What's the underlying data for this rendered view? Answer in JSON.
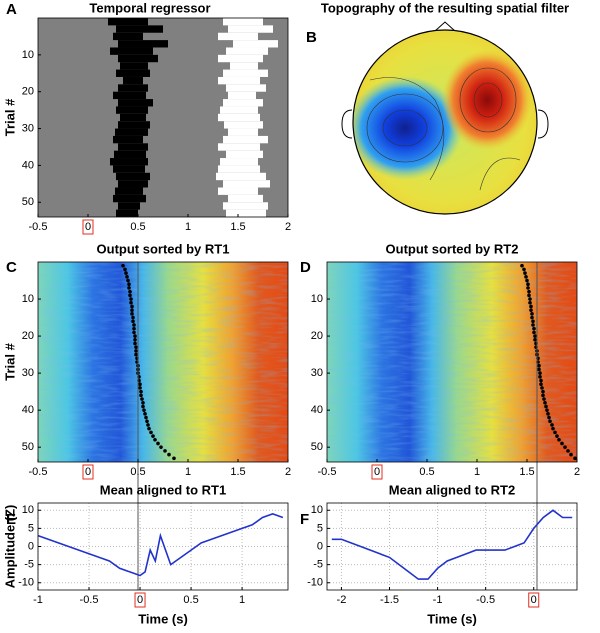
{
  "chart_data": [
    {
      "type": "raster",
      "panel": "A",
      "title": "Temporal regressor",
      "ylabel": "Trial #",
      "xlim": [
        -0.5,
        2
      ],
      "xticks": [
        -0.5,
        0,
        0.5,
        1,
        1.5,
        2
      ],
      "highlight_tick": 0,
      "ylim": [
        0,
        54
      ],
      "yticks": [
        10,
        20,
        30,
        40,
        50
      ],
      "yinvert": true,
      "trials": [
        1,
        3,
        5,
        7,
        9,
        11,
        13,
        15,
        17,
        19,
        21,
        23,
        25,
        27,
        29,
        31,
        33,
        35,
        37,
        39,
        41,
        43,
        45,
        47,
        49,
        51,
        53
      ],
      "black_start": [
        0.2,
        0.28,
        0.25,
        0.3,
        0.22,
        0.3,
        0.32,
        0.28,
        0.35,
        0.3,
        0.25,
        0.3,
        0.28,
        0.32,
        0.3,
        0.27,
        0.25,
        0.3,
        0.26,
        0.22,
        0.25,
        0.28,
        0.3,
        0.27,
        0.25,
        0.3,
        0.28
      ],
      "black_end": [
        0.6,
        0.75,
        0.55,
        0.8,
        0.65,
        0.7,
        0.6,
        0.62,
        0.55,
        0.6,
        0.58,
        0.65,
        0.6,
        0.58,
        0.62,
        0.6,
        0.55,
        0.6,
        0.58,
        0.6,
        0.57,
        0.62,
        0.6,
        0.55,
        0.58,
        0.52,
        0.5
      ],
      "white_start": [
        1.35,
        1.4,
        1.3,
        1.45,
        1.38,
        1.3,
        1.42,
        1.35,
        1.3,
        1.38,
        1.4,
        1.35,
        1.32,
        1.3,
        1.36,
        1.4,
        1.35,
        1.3,
        1.38,
        1.32,
        1.3,
        1.28,
        1.35,
        1.3,
        1.4,
        1.35,
        1.38
      ],
      "white_end": [
        1.75,
        1.85,
        1.7,
        1.9,
        1.8,
        1.75,
        1.7,
        1.8,
        1.72,
        1.78,
        1.68,
        1.75,
        1.7,
        1.72,
        1.75,
        1.7,
        1.8,
        1.72,
        1.75,
        1.7,
        1.72,
        1.78,
        1.82,
        1.7,
        1.75,
        1.8,
        1.78
      ]
    },
    {
      "type": "topomap",
      "panel": "B",
      "title": "Topography of the resulting spatial filter"
    },
    {
      "type": "heatmap",
      "panel": "C",
      "title": "Output sorted by RT1",
      "ylabel": "Trial #",
      "xlim": [
        -0.5,
        2
      ],
      "xticks": [
        -0.5,
        0,
        0.5,
        1,
        1.5,
        2
      ],
      "highlight_tick": 0,
      "reference_line": 0.5,
      "ylim": [
        0,
        54
      ],
      "yticks": [
        10,
        20,
        30,
        40,
        50
      ],
      "yinvert": true,
      "trials": [
        1,
        2,
        3,
        4,
        5,
        6,
        7,
        8,
        9,
        10,
        11,
        12,
        13,
        14,
        15,
        16,
        17,
        18,
        19,
        20,
        21,
        22,
        23,
        24,
        25,
        26,
        27,
        28,
        29,
        30,
        31,
        32,
        33,
        34,
        35,
        36,
        37,
        38,
        39,
        40,
        41,
        42,
        43,
        44,
        45,
        46,
        47,
        48,
        49,
        50,
        51,
        52,
        53
      ],
      "rt": [
        0.35,
        0.37,
        0.38,
        0.39,
        0.4,
        0.41,
        0.41,
        0.42,
        0.42,
        0.43,
        0.43,
        0.44,
        0.44,
        0.44,
        0.45,
        0.45,
        0.46,
        0.46,
        0.46,
        0.47,
        0.47,
        0.47,
        0.48,
        0.48,
        0.48,
        0.49,
        0.49,
        0.5,
        0.5,
        0.5,
        0.51,
        0.51,
        0.52,
        0.52,
        0.53,
        0.53,
        0.54,
        0.55,
        0.55,
        0.56,
        0.57,
        0.58,
        0.59,
        0.6,
        0.61,
        0.63,
        0.65,
        0.67,
        0.7,
        0.73,
        0.77,
        0.81,
        0.86
      ]
    },
    {
      "type": "heatmap",
      "panel": "D",
      "title": "Output sorted by RT2",
      "xlim": [
        -0.5,
        2
      ],
      "xticks": [
        -0.5,
        0,
        0.5,
        1,
        1.5,
        2
      ],
      "highlight_tick": 0,
      "reference_line": 1.6,
      "ylim": [
        0,
        54
      ],
      "yticks": [
        10,
        20,
        30,
        40,
        50
      ],
      "yinvert": true,
      "trials": [
        1,
        2,
        3,
        4,
        5,
        6,
        7,
        8,
        9,
        10,
        11,
        12,
        13,
        14,
        15,
        16,
        17,
        18,
        19,
        20,
        21,
        22,
        23,
        24,
        25,
        26,
        27,
        28,
        29,
        30,
        31,
        32,
        33,
        34,
        35,
        36,
        37,
        38,
        39,
        40,
        41,
        42,
        43,
        44,
        45,
        46,
        47,
        48,
        49,
        50,
        51,
        52,
        53
      ],
      "rt": [
        1.45,
        1.47,
        1.48,
        1.49,
        1.5,
        1.51,
        1.51,
        1.52,
        1.52,
        1.53,
        1.53,
        1.54,
        1.54,
        1.55,
        1.55,
        1.56,
        1.56,
        1.57,
        1.57,
        1.58,
        1.58,
        1.59,
        1.59,
        1.6,
        1.6,
        1.61,
        1.61,
        1.62,
        1.62,
        1.63,
        1.63,
        1.64,
        1.64,
        1.65,
        1.66,
        1.66,
        1.67,
        1.68,
        1.69,
        1.7,
        1.71,
        1.72,
        1.73,
        1.75,
        1.76,
        1.78,
        1.8,
        1.82,
        1.85,
        1.88,
        1.91,
        1.94,
        1.98
      ]
    },
    {
      "type": "line",
      "panel": "E",
      "title": "Mean aligned to RT1",
      "ylabel": "Amplitude (Z)",
      "xlabel": "Time (s)",
      "xlim": [
        -1,
        1.45
      ],
      "xticks": [
        -1,
        -0.5,
        0,
        0.5,
        1
      ],
      "highlight_tick": 0,
      "ylim": [
        -12,
        12
      ],
      "yticks": [
        -10,
        -5,
        0,
        5,
        10
      ],
      "grid": true,
      "color": "#2233cc",
      "x": [
        -1,
        -0.9,
        -0.8,
        -0.7,
        -0.6,
        -0.5,
        -0.4,
        -0.3,
        -0.2,
        -0.1,
        0,
        0.05,
        0.1,
        0.15,
        0.2,
        0.3,
        0.4,
        0.5,
        0.6,
        0.7,
        0.8,
        0.9,
        1,
        1.1,
        1.2,
        1.3,
        1.4
      ],
      "values": [
        3,
        2,
        1,
        0,
        -1,
        -2,
        -3,
        -4,
        -6,
        -7,
        -8,
        -7,
        -1,
        -4,
        3,
        -5,
        -3,
        -1,
        1,
        2,
        3,
        4,
        5,
        6,
        8,
        9,
        8
      ]
    },
    {
      "type": "line",
      "panel": "F",
      "title": "Mean aligned to RT2",
      "xlabel": "Time (s)",
      "xlim": [
        -2.15,
        0.45
      ],
      "xticks": [
        -2,
        -1.5,
        -1,
        -0.5,
        0
      ],
      "highlight_tick": 0,
      "ylim": [
        -12,
        12
      ],
      "yticks": [
        -10,
        -5,
        0,
        5,
        10
      ],
      "grid": true,
      "color": "#2233cc",
      "x": [
        -2.1,
        -2,
        -1.9,
        -1.8,
        -1.7,
        -1.6,
        -1.5,
        -1.4,
        -1.3,
        -1.2,
        -1.1,
        -1,
        -0.9,
        -0.8,
        -0.7,
        -0.6,
        -0.5,
        -0.4,
        -0.3,
        -0.2,
        -0.1,
        0,
        0.1,
        0.2,
        0.3,
        0.4
      ],
      "values": [
        2,
        2,
        1,
        0,
        -1,
        -2,
        -3,
        -5,
        -7,
        -9,
        -9,
        -6,
        -4,
        -3,
        -2,
        -1,
        -1,
        -1,
        -1,
        0,
        1,
        5,
        8,
        10,
        8,
        8
      ]
    }
  ]
}
